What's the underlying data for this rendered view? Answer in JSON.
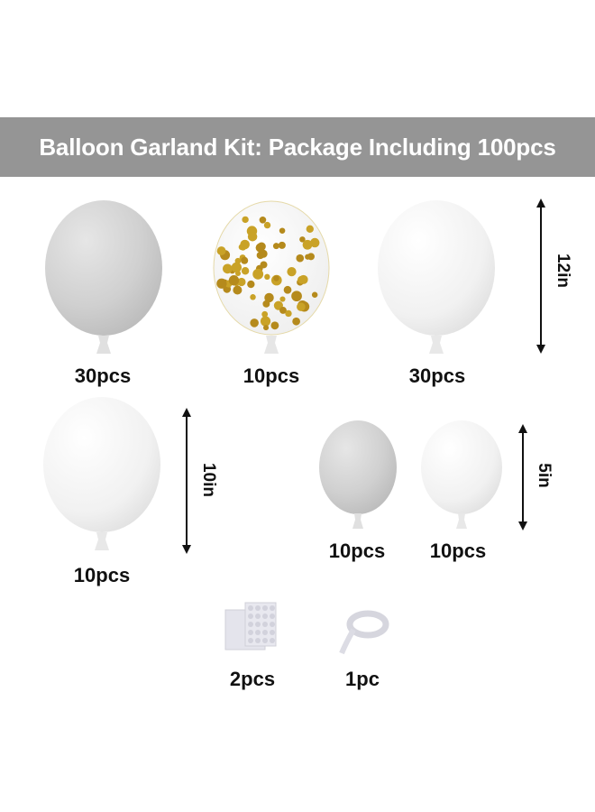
{
  "title": "Balloon Garland Kit: Package Including 100pcs",
  "items": [
    {
      "label": "30pcs",
      "color": "#d2d2d2",
      "kind": "grey-balloon-12in"
    },
    {
      "label": "10pcs",
      "color": "#c9a227",
      "kind": "gold-confetti-balloon-12in"
    },
    {
      "label": "30pcs",
      "color": "#f3f3f3",
      "kind": "white-balloon-12in"
    },
    {
      "label": "10pcs",
      "color": "#f3f3f3",
      "kind": "white-balloon-10in"
    },
    {
      "label": "10pcs",
      "color": "#d2d2d2",
      "kind": "grey-balloon-5in"
    },
    {
      "label": "10pcs",
      "color": "#f3f3f3",
      "kind": "white-balloon-5in"
    },
    {
      "label": "2pcs",
      "kind": "glue-dots"
    },
    {
      "label": "1pc",
      "kind": "balloon-tape-strip"
    }
  ],
  "sizes": {
    "large": "12in",
    "medium": "10in",
    "small": "5in"
  },
  "banner_color": "#959595"
}
